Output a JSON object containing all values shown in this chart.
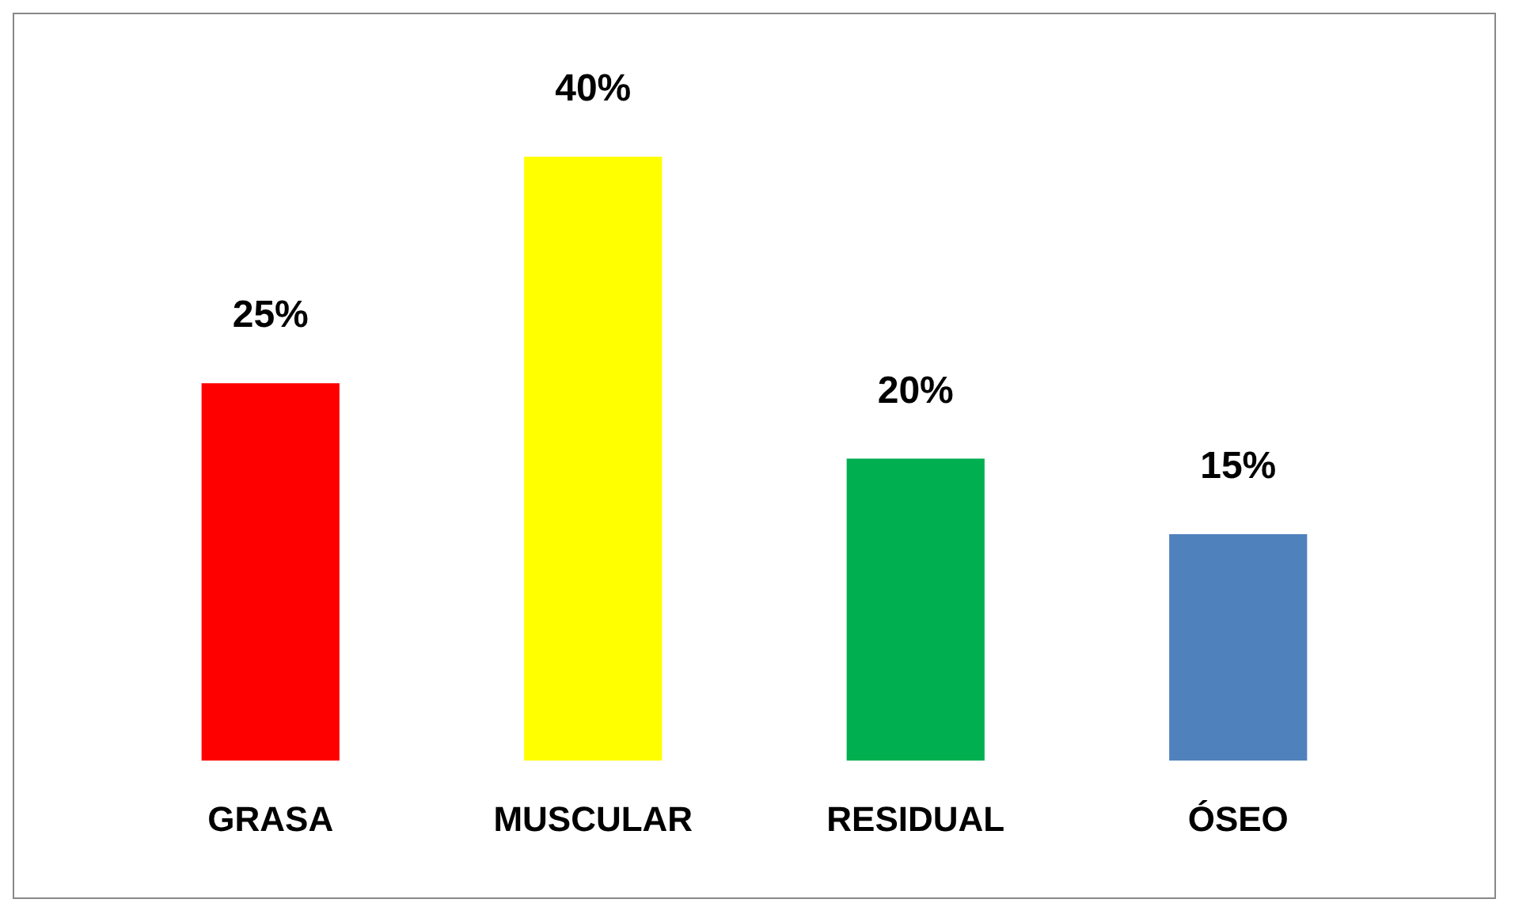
{
  "chart_data": {
    "type": "bar",
    "categories": [
      "GRASA",
      "MUSCULAR",
      "RESIDUAL",
      "ÓSEO"
    ],
    "values": [
      25,
      40,
      20,
      15
    ],
    "colors": [
      "#ff0000",
      "#ffff00",
      "#00b050",
      "#4f81bd"
    ],
    "value_labels": [
      "25%",
      "40%",
      "20%",
      "15%"
    ],
    "grid": false,
    "legend": false
  }
}
